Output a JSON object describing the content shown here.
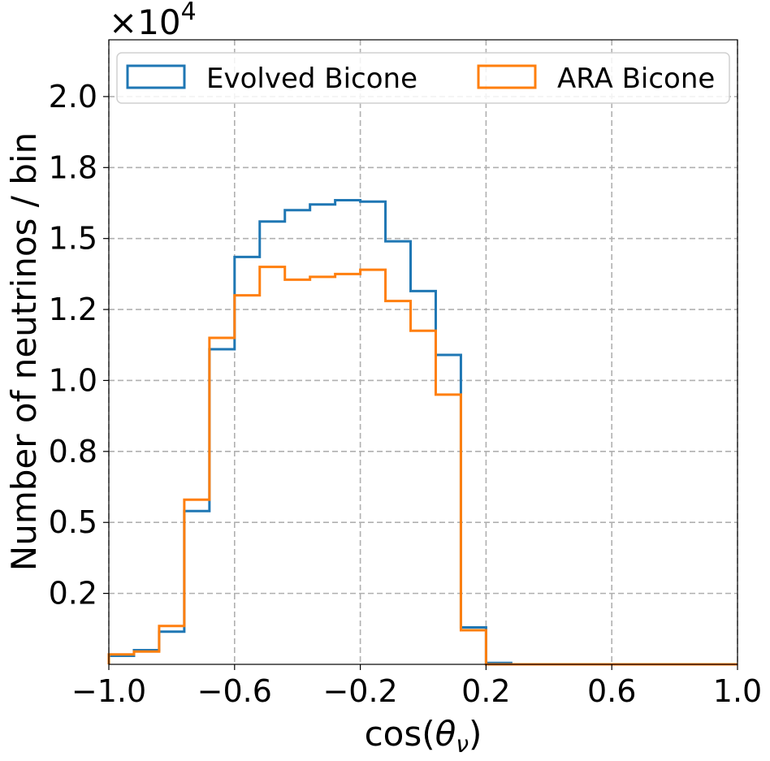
{
  "chart_data": {
    "type": "step-histogram",
    "multiplier_label": "×10",
    "multiplier_exponent": "4",
    "xlabel_prefix": "cos(",
    "xlabel_symbol": "θ",
    "xlabel_subscript": "ν",
    "xlabel_suffix": ")",
    "ylabel": "Number of neutrinos / bin",
    "xlim": [
      -1.0,
      1.0
    ],
    "ylim": [
      0,
      2.2
    ],
    "bin_edges": [
      -1.0,
      -0.92,
      -0.84,
      -0.76,
      -0.68,
      -0.6,
      -0.52,
      -0.44,
      -0.36,
      -0.28,
      -0.2,
      -0.12,
      -0.04,
      0.04,
      0.12,
      0.2,
      0.28,
      0.36,
      0.44,
      0.52,
      0.6,
      0.68,
      0.76,
      0.84,
      0.92,
      1.0
    ],
    "x_ticks": [
      {
        "value": -1.0,
        "label": "−1.0"
      },
      {
        "value": -0.6,
        "label": "−0.6"
      },
      {
        "value": -0.2,
        "label": "−0.2"
      },
      {
        "value": 0.2,
        "label": "0.2"
      },
      {
        "value": 0.6,
        "label": "0.6"
      },
      {
        "value": 1.0,
        "label": "1.0"
      }
    ],
    "y_ticks": [
      {
        "value": 0.25,
        "label": "0.2"
      },
      {
        "value": 0.5,
        "label": "0.5"
      },
      {
        "value": 0.75,
        "label": "0.8"
      },
      {
        "value": 1.0,
        "label": "1.0"
      },
      {
        "value": 1.25,
        "label": "1.2"
      },
      {
        "value": 1.5,
        "label": "1.5"
      },
      {
        "value": 1.75,
        "label": "1.8"
      },
      {
        "value": 2.0,
        "label": "2.0"
      }
    ],
    "grid": true,
    "legend_position": "top",
    "series": [
      {
        "name": "Evolved Bicone",
        "color": "#1f77b4",
        "values": [
          0.03,
          0.05,
          0.115,
          0.54,
          1.11,
          1.435,
          1.56,
          1.6,
          1.62,
          1.635,
          1.63,
          1.49,
          1.315,
          1.09,
          0.13,
          0.005,
          0.0,
          0.0,
          0.0,
          0.0,
          0.0,
          0.0,
          0.0,
          0.0,
          0.0
        ]
      },
      {
        "name": "ARA Bicone",
        "color": "#ff7f0e",
        "values": [
          0.035,
          0.045,
          0.135,
          0.58,
          1.15,
          1.3,
          1.4,
          1.355,
          1.365,
          1.375,
          1.39,
          1.28,
          1.175,
          0.95,
          0.12,
          0.0,
          0.0,
          0.0,
          0.0,
          0.0,
          0.0,
          0.0,
          0.0,
          0.0,
          0.0
        ]
      }
    ]
  }
}
